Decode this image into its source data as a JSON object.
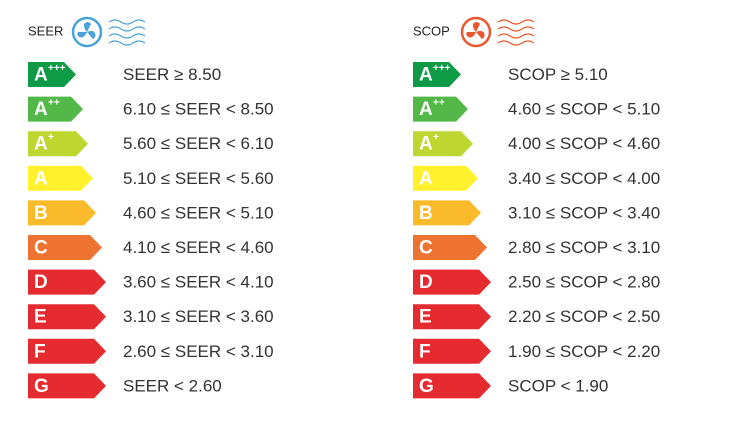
{
  "panels": [
    {
      "title": "SEER",
      "rows": [
        {
          "class": "A",
          "sup": "+++",
          "range": "SEER ≥ 8.50"
        },
        {
          "class": "A",
          "sup": "++",
          "range": "6.10 ≤ SEER < 8.50"
        },
        {
          "class": "A",
          "sup": "+",
          "range": "5.60 ≤ SEER < 6.10"
        },
        {
          "class": "A",
          "range": "5.10 ≤ SEER < 5.60"
        },
        {
          "class": "B",
          "range": "4.60 ≤ SEER < 5.10"
        },
        {
          "class": "C",
          "range": "4.10 ≤ SEER < 4.60"
        },
        {
          "class": "D",
          "range": "3.60 ≤ SEER < 4.10"
        },
        {
          "class": "E",
          "range": "3.10 ≤ SEER < 3.60"
        },
        {
          "class": "F",
          "range": "2.60 ≤ SEER < 3.10"
        },
        {
          "class": "G",
          "range": "SEER < 2.60"
        }
      ]
    },
    {
      "title": "SCOP",
      "rows": [
        {
          "class": "A",
          "sup": "+++",
          "range": "SCOP ≥ 5.10"
        },
        {
          "class": "A",
          "sup": "++",
          "range": "4.60 ≤ SCOP < 5.10"
        },
        {
          "class": "A",
          "sup": "+",
          "range": "4.00 ≤ SCOP < 4.60"
        },
        {
          "class": "A",
          "range": "3.40 ≤ SCOP < 4.00"
        },
        {
          "class": "B",
          "range": "3.10 ≤ SCOP < 3.40"
        },
        {
          "class": "C",
          "range": "2.80 ≤ SCOP < 3.10"
        },
        {
          "class": "D",
          "range": "2.50 ≤ SCOP < 2.80"
        },
        {
          "class": "E",
          "range": "2.20 ≤ SCOP < 2.50"
        },
        {
          "class": "F",
          "range": "1.90 ≤ SCOP < 2.20"
        },
        {
          "class": "G",
          "range": "SCOP < 1.90"
        }
      ]
    }
  ]
}
